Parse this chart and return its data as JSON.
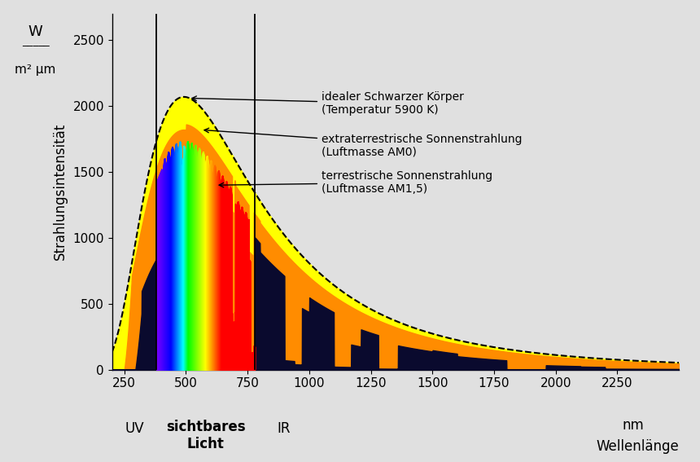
{
  "xlabel_nm": "nm",
  "xlabel_wellenlange": "Wellenlänge",
  "ylabel_line1": "W",
  "ylabel_line2": "m² μm",
  "ylabel_main": "Strahlungsintensität",
  "xlim": [
    200,
    2500
  ],
  "ylim": [
    0,
    2700
  ],
  "yticks": [
    0,
    500,
    1000,
    1500,
    2000,
    2500
  ],
  "xticks": [
    250,
    500,
    750,
    1000,
    1250,
    1500,
    1750,
    2000,
    2250
  ],
  "uv_label": "UV",
  "vis_label": "sichtbares\nLicht",
  "ir_label": "IR",
  "ann1": "idealer Schwarzer Körper\n(Temperatur 5900 K)",
  "ann2": "extraterrestrische Sonnenstrahlung\n(Luftmasse AM0)",
  "ann3": "terrestrische Sonnenstrahlung\n(Luftmasse AM1,5)",
  "vis_start": 380,
  "vis_end": 780,
  "background_color": "#e0e0e0"
}
